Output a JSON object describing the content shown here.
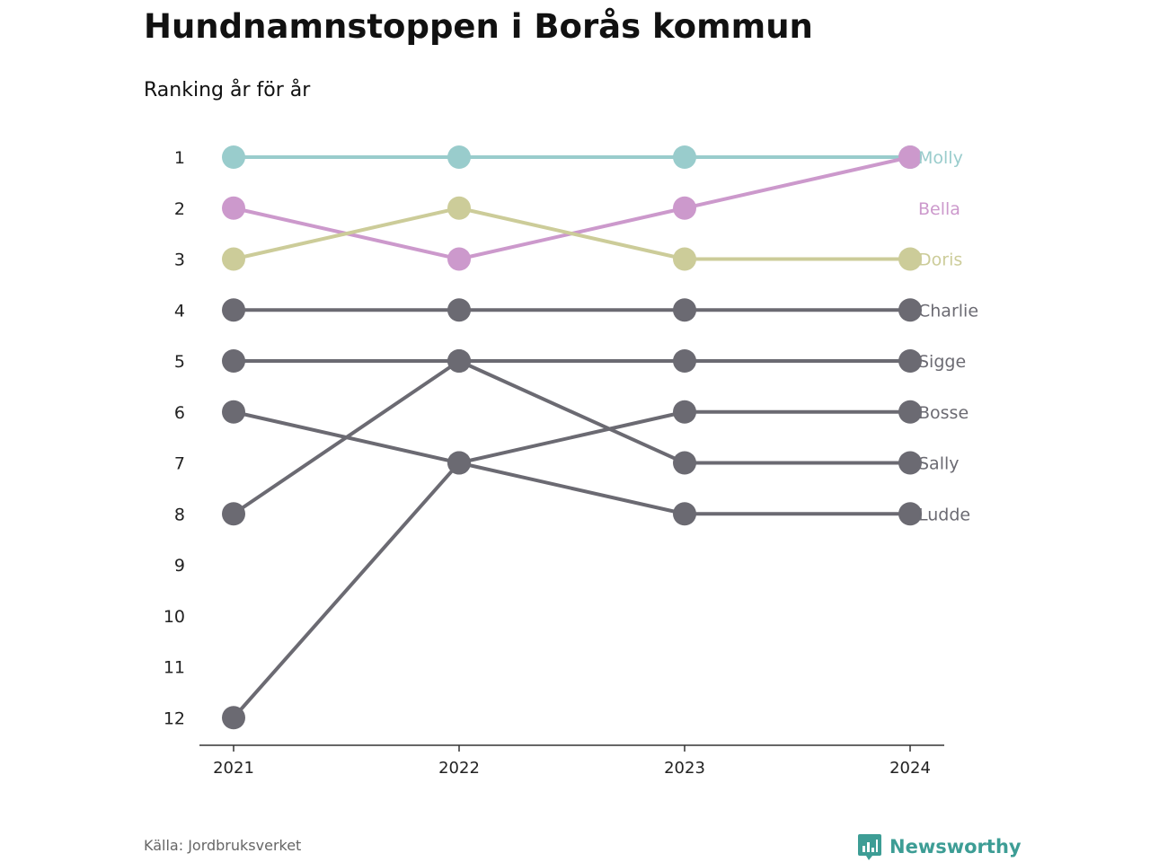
{
  "title": "Hundnamnstoppen i Borås kommun",
  "subtitle": "Ranking år för år",
  "source": "Källa: Jordbruksverket",
  "brand": "Newsworthy",
  "colors": {
    "Molly": "#99cccc",
    "Bella": "#cc99cc",
    "Doris": "#cccc99",
    "other": "#6b6a72",
    "axis": "#333333",
    "brand": "#3d9d95"
  },
  "chart_data": {
    "type": "line",
    "title": "Hundnamnstoppen i Borås kommun",
    "subtitle": "Ranking år för år",
    "x": [
      "2021",
      "2022",
      "2023",
      "2024"
    ],
    "y_ticks": [
      1,
      2,
      3,
      4,
      5,
      6,
      7,
      8,
      9,
      10,
      11,
      12
    ],
    "ylim": [
      1,
      12
    ],
    "y_inverted": true,
    "series": [
      {
        "name": "Molly",
        "values": [
          1,
          1,
          1,
          1
        ]
      },
      {
        "name": "Bella",
        "values": [
          2,
          3,
          2,
          1
        ]
      },
      {
        "name": "Doris",
        "values": [
          3,
          2,
          3,
          3
        ]
      },
      {
        "name": "Charlie",
        "values": [
          4,
          4,
          4,
          4
        ]
      },
      {
        "name": "Sigge",
        "values": [
          5,
          5,
          5,
          5
        ]
      },
      {
        "name": "Bosse",
        "values": [
          12,
          7,
          6,
          6
        ]
      },
      {
        "name": "Sally",
        "values": [
          8,
          5,
          7,
          7
        ]
      },
      {
        "name": "Ludde",
        "values": [
          6,
          7,
          8,
          8
        ]
      }
    ]
  }
}
